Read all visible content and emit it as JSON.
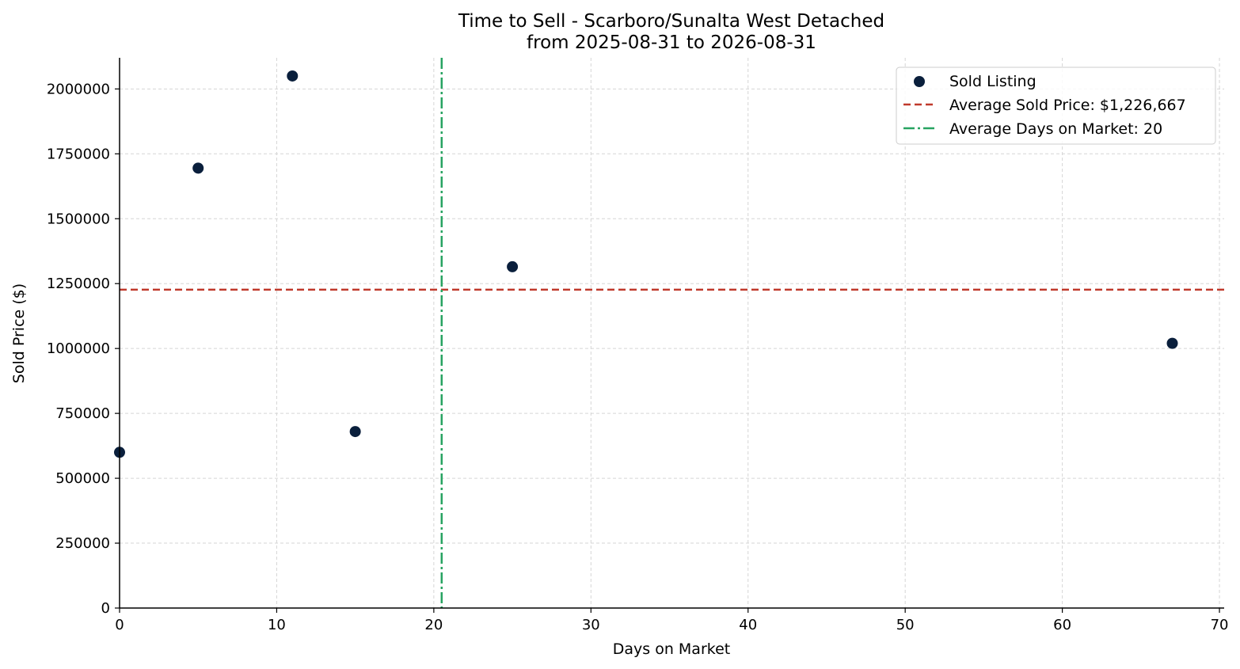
{
  "chart_data": {
    "type": "scatter",
    "title_line1": "Time to Sell - Scarboro/Sunalta West Detached",
    "title_line2": "from 2025-08-31 to 2026-08-31",
    "xlabel": "Days on Market",
    "ylabel": "Sold Price ($)",
    "xlim": [
      0,
      70.3
    ],
    "ylim": [
      0,
      2120000
    ],
    "xticks": [
      0,
      10,
      20,
      30,
      40,
      50,
      60,
      70
    ],
    "yticks": [
      0,
      250000,
      500000,
      750000,
      1000000,
      1250000,
      1500000,
      1750000,
      2000000
    ],
    "grid": true,
    "legend_position": "top-right",
    "series": [
      {
        "name": "Sold Listing",
        "color": "#0a1f3c",
        "points": [
          {
            "x": 0,
            "y": 600000
          },
          {
            "x": 5,
            "y": 1695000
          },
          {
            "x": 11,
            "y": 2050000
          },
          {
            "x": 15,
            "y": 680000
          },
          {
            "x": 25,
            "y": 1315000
          },
          {
            "x": 67,
            "y": 1020000
          }
        ]
      }
    ],
    "reference_lines": [
      {
        "orientation": "horizontal",
        "value": 1226667,
        "label": "Average Sold Price: $1,226,667",
        "color": "#c0392b",
        "style": "dashed"
      },
      {
        "orientation": "vertical",
        "value": 20.5,
        "label": "Average Days on Market: 20",
        "color": "#27a361",
        "style": "dashdot"
      }
    ]
  }
}
